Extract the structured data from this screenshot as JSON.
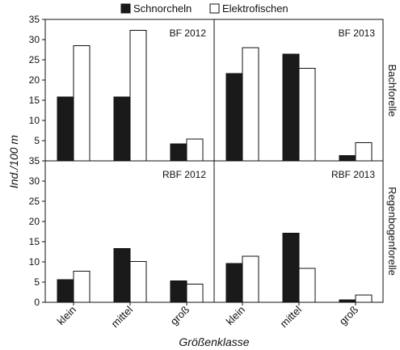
{
  "chart_data": {
    "type": "bar",
    "legend_position": "top",
    "series_names": [
      "Schnorcheln",
      "Elektrofischen"
    ],
    "series_colors": [
      "#1a1a1a",
      "#ffffff"
    ],
    "categories": [
      "klein",
      "mittel",
      "groß"
    ],
    "xlabel": "Größenklasse",
    "ylabel": "Ind./100 m",
    "ylim": [
      0,
      35
    ],
    "yticks": [
      "0",
      "5",
      "10",
      "15",
      "20",
      "25",
      "30",
      "35"
    ],
    "row_labels": [
      "Bachforelle",
      "Regenbogenforelle"
    ],
    "panels": [
      {
        "label": "BF 2012",
        "row": 0,
        "col": 0,
        "series": [
          {
            "name": "Schnorcheln",
            "values": [
              15.8,
              15.8,
              4.2
            ]
          },
          {
            "name": "Elektrofischen",
            "values": [
              28.5,
              32.3,
              5.4
            ]
          }
        ]
      },
      {
        "label": "BF 2013",
        "row": 0,
        "col": 1,
        "series": [
          {
            "name": "Schnorcheln",
            "values": [
              21.6,
              26.4,
              1.3
            ]
          },
          {
            "name": "Elektrofischen",
            "values": [
              28.0,
              22.9,
              4.5
            ]
          }
        ]
      },
      {
        "label": "RBF 2012",
        "row": 1,
        "col": 0,
        "series": [
          {
            "name": "Schnorcheln",
            "values": [
              5.6,
              13.3,
              5.3
            ]
          },
          {
            "name": "Elektrofischen",
            "values": [
              7.7,
              10.1,
              4.5
            ]
          }
        ]
      },
      {
        "label": "RBF 2013",
        "row": 1,
        "col": 1,
        "series": [
          {
            "name": "Schnorcheln",
            "values": [
              9.6,
              17.1,
              0.6
            ]
          },
          {
            "name": "Elektrofischen",
            "values": [
              11.4,
              8.4,
              1.8
            ]
          }
        ]
      }
    ]
  }
}
